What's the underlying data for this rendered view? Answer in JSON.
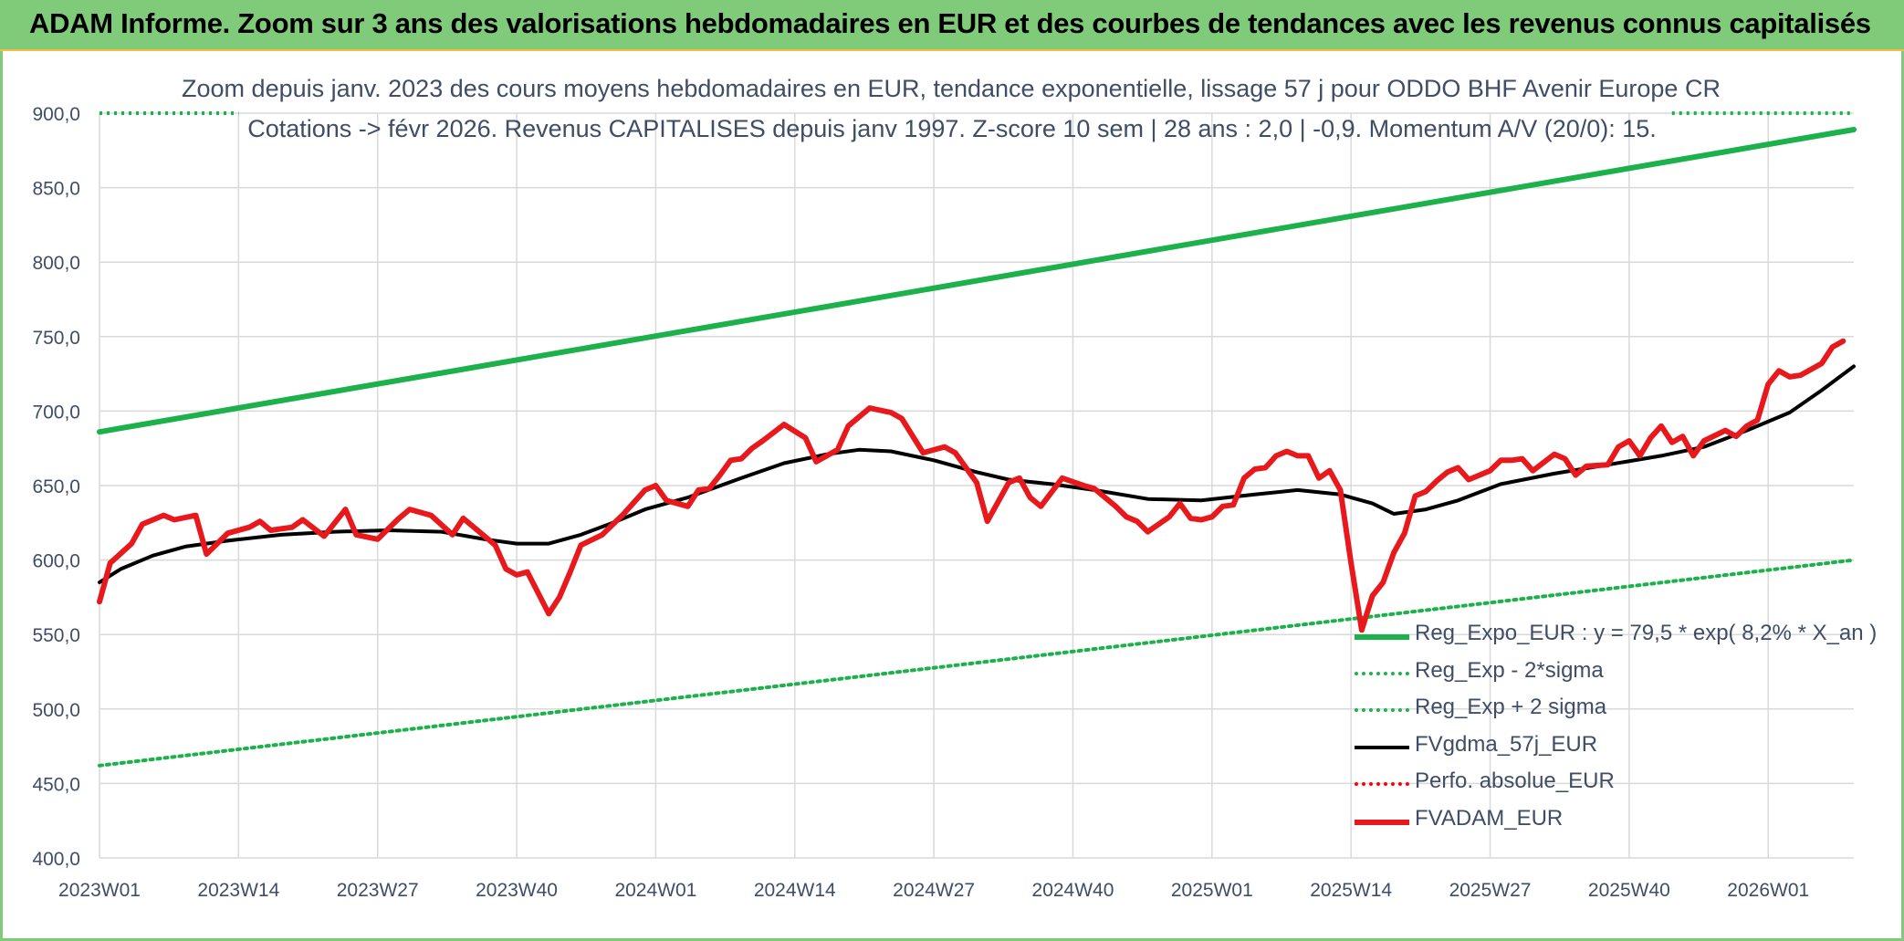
{
  "header": {
    "title": "ADAM Informe. Zoom sur 3 ans des valorisations hebdomadaires en EUR et des courbes de tendances avec les revenus connus capitalisés"
  },
  "chart_data": {
    "type": "line",
    "title": "Zoom depuis janv. 2023 des cours moyens hebdomadaires en EUR, tendance exponentielle, lissage 57 j pour ODDO BHF Avenir Europe CR",
    "subtitle": "Cotations -> févr 2026. Revenus CAPITALISES depuis janv 1997. Z-score 10 sem | 28 ans : 2,0 | -0,9. Momentum A/V (20/0): 15.",
    "xlabel": "",
    "ylabel": "",
    "ylim": [
      400,
      900
    ],
    "yticks": [
      "400,0",
      "450,0",
      "500,0",
      "550,0",
      "600,0",
      "650,0",
      "700,0",
      "750,0",
      "800,0",
      "850,0",
      "900,0"
    ],
    "xticks": [
      "2023W01",
      "2023W14",
      "2023W27",
      "2023W40",
      "2024W01",
      "2024W14",
      "2024W27",
      "2024W40",
      "2025W01",
      "2025W14",
      "2025W27",
      "2025W40",
      "2026W01"
    ],
    "grid": true,
    "legend_position": "bottom-right",
    "series": [
      {
        "name": "Reg_Expo_EUR : y = 79,5 * exp( 8,2% *  X_an )",
        "color": "#1db14b",
        "style": "solid-thick",
        "points": [
          [
            0,
            686
          ],
          [
            164,
            889
          ]
        ]
      },
      {
        "name": "Reg_Exp - 2*sigma",
        "color": "#1db14b",
        "style": "dotted",
        "points": [
          [
            0,
            462
          ],
          [
            164,
            600
          ]
        ]
      },
      {
        "name": "Reg_Exp + 2 sigma",
        "color": "#1db14b",
        "style": "dotted",
        "points": [
          [
            0,
            900
          ],
          [
            13,
            900
          ],
          [
            147,
            900
          ],
          [
            164,
            900
          ]
        ]
      },
      {
        "name": "FVgdma_57j_EUR",
        "color": "#000000",
        "style": "solid",
        "points": [
          [
            0,
            585
          ],
          [
            2,
            594
          ],
          [
            5,
            603
          ],
          [
            8,
            609
          ],
          [
            12,
            613
          ],
          [
            17,
            617
          ],
          [
            22,
            619
          ],
          [
            27,
            620
          ],
          [
            32,
            619
          ],
          [
            36,
            614
          ],
          [
            39,
            611
          ],
          [
            42,
            611
          ],
          [
            45,
            617
          ],
          [
            48,
            625
          ],
          [
            51,
            634
          ],
          [
            55,
            642
          ],
          [
            60,
            655
          ],
          [
            64,
            665
          ],
          [
            68,
            671
          ],
          [
            71,
            674
          ],
          [
            74,
            673
          ],
          [
            78,
            667
          ],
          [
            82,
            659
          ],
          [
            85,
            654
          ],
          [
            89,
            651
          ],
          [
            93,
            647
          ],
          [
            98,
            641
          ],
          [
            103,
            640
          ],
          [
            108,
            644
          ],
          [
            112,
            647
          ],
          [
            116,
            644
          ],
          [
            119,
            638
          ],
          [
            121,
            631
          ],
          [
            124,
            634
          ],
          [
            127,
            640
          ],
          [
            131,
            651
          ],
          [
            136,
            658
          ],
          [
            141,
            664
          ],
          [
            146,
            670
          ],
          [
            150,
            676
          ],
          [
            154,
            687
          ],
          [
            158,
            699
          ],
          [
            161,
            714
          ],
          [
            164,
            730
          ]
        ]
      },
      {
        "name": "Perfo. absolue_EUR",
        "color": "#ff0000",
        "style": "dotted",
        "points": []
      },
      {
        "name": "FVADAM_EUR",
        "color": "#e8191c",
        "style": "solid-thick",
        "points": [
          [
            0,
            572
          ],
          [
            1,
            598
          ],
          [
            3,
            611
          ],
          [
            4,
            624
          ],
          [
            6,
            630
          ],
          [
            7,
            627
          ],
          [
            9,
            630
          ],
          [
            10,
            604
          ],
          [
            12,
            618
          ],
          [
            14,
            622
          ],
          [
            15,
            626
          ],
          [
            16,
            620
          ],
          [
            18,
            622
          ],
          [
            19,
            627
          ],
          [
            21,
            616
          ],
          [
            23,
            634
          ],
          [
            24,
            617
          ],
          [
            26,
            614
          ],
          [
            28,
            628
          ],
          [
            29,
            634
          ],
          [
            31,
            630
          ],
          [
            33,
            617
          ],
          [
            34,
            628
          ],
          [
            35,
            622
          ],
          [
            37,
            610
          ],
          [
            38,
            594
          ],
          [
            39,
            590
          ],
          [
            40,
            592
          ],
          [
            42,
            564
          ],
          [
            43,
            575
          ],
          [
            44,
            592
          ],
          [
            45,
            610
          ],
          [
            47,
            617
          ],
          [
            49,
            631
          ],
          [
            51,
            647
          ],
          [
            52,
            650
          ],
          [
            53,
            640
          ],
          [
            55,
            636
          ],
          [
            56,
            647
          ],
          [
            57,
            648
          ],
          [
            58,
            657
          ],
          [
            59,
            667
          ],
          [
            60,
            668
          ],
          [
            61,
            675
          ],
          [
            62,
            680
          ],
          [
            64,
            691
          ],
          [
            66,
            682
          ],
          [
            67,
            666
          ],
          [
            69,
            674
          ],
          [
            70,
            690
          ],
          [
            72,
            702
          ],
          [
            74,
            699
          ],
          [
            75,
            695
          ],
          [
            77,
            672
          ],
          [
            79,
            676
          ],
          [
            80,
            672
          ],
          [
            82,
            652
          ],
          [
            83,
            626
          ],
          [
            85,
            652
          ],
          [
            86,
            655
          ],
          [
            87,
            642
          ],
          [
            88,
            636
          ],
          [
            90,
            655
          ],
          [
            92,
            650
          ],
          [
            93,
            648
          ],
          [
            95,
            636
          ],
          [
            96,
            629
          ],
          [
            97,
            626
          ],
          [
            98,
            619
          ],
          [
            100,
            629
          ],
          [
            101,
            638
          ],
          [
            102,
            628
          ],
          [
            103,
            627
          ],
          [
            104,
            629
          ],
          [
            105,
            636
          ],
          [
            106,
            637
          ],
          [
            107,
            655
          ],
          [
            108,
            661
          ],
          [
            109,
            662
          ],
          [
            110,
            670
          ],
          [
            111,
            673
          ],
          [
            112,
            670
          ],
          [
            113,
            670
          ],
          [
            114,
            655
          ],
          [
            115,
            660
          ],
          [
            116,
            647
          ],
          [
            117,
            598
          ],
          [
            118,
            553
          ],
          [
            119,
            576
          ],
          [
            120,
            585
          ],
          [
            121,
            605
          ],
          [
            122,
            618
          ],
          [
            123,
            643
          ],
          [
            124,
            646
          ],
          [
            125,
            653
          ],
          [
            126,
            659
          ],
          [
            127,
            662
          ],
          [
            128,
            654
          ],
          [
            129,
            657
          ],
          [
            130,
            660
          ],
          [
            131,
            667
          ],
          [
            132,
            667
          ],
          [
            133,
            668
          ],
          [
            134,
            660
          ],
          [
            136,
            671
          ],
          [
            137,
            668
          ],
          [
            138,
            657
          ],
          [
            139,
            663
          ],
          [
            141,
            664
          ],
          [
            142,
            676
          ],
          [
            143,
            680
          ],
          [
            144,
            670
          ],
          [
            145,
            682
          ],
          [
            146,
            690
          ],
          [
            147,
            679
          ],
          [
            148,
            683
          ],
          [
            149,
            670
          ],
          [
            150,
            680
          ],
          [
            152,
            687
          ],
          [
            153,
            683
          ],
          [
            154,
            690
          ],
          [
            155,
            694
          ],
          [
            156,
            718
          ],
          [
            157,
            727
          ],
          [
            158,
            723
          ],
          [
            159,
            724
          ],
          [
            160,
            728
          ],
          [
            161,
            732
          ],
          [
            162,
            743
          ],
          [
            163,
            747
          ]
        ]
      }
    ]
  }
}
